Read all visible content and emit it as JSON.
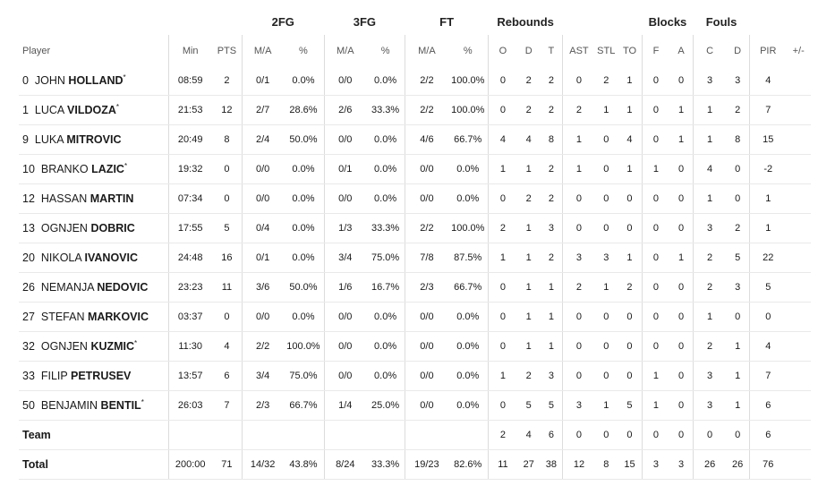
{
  "groups": {
    "fg2": "2FG",
    "fg3": "3FG",
    "ft": "FT",
    "rebounds": "Rebounds",
    "blocks": "Blocks",
    "fouls": "Fouls"
  },
  "headers": [
    "Player",
    "Min",
    "PTS",
    "M/A",
    "%",
    "M/A",
    "%",
    "M/A",
    "%",
    "O",
    "D",
    "T",
    "AST",
    "STL",
    "TO",
    "F",
    "A",
    "C",
    "D",
    "PIR",
    "+/-"
  ],
  "players": [
    {
      "number": "0",
      "first": "JOHN",
      "last": "HOLLAND",
      "starter": true,
      "stats": [
        "08:59",
        "2",
        "0/1",
        "0.0%",
        "0/0",
        "0.0%",
        "2/2",
        "100.0%",
        "0",
        "2",
        "2",
        "0",
        "2",
        "1",
        "0",
        "0",
        "3",
        "3",
        "4",
        ""
      ]
    },
    {
      "number": "1",
      "first": "LUCA",
      "last": "VILDOZA",
      "starter": true,
      "stats": [
        "21:53",
        "12",
        "2/7",
        "28.6%",
        "2/6",
        "33.3%",
        "2/2",
        "100.0%",
        "0",
        "2",
        "2",
        "2",
        "1",
        "1",
        "0",
        "1",
        "1",
        "2",
        "7",
        ""
      ]
    },
    {
      "number": "9",
      "first": "LUKA",
      "last": "MITROVIC",
      "starter": false,
      "stats": [
        "20:49",
        "8",
        "2/4",
        "50.0%",
        "0/0",
        "0.0%",
        "4/6",
        "66.7%",
        "4",
        "4",
        "8",
        "1",
        "0",
        "4",
        "0",
        "1",
        "1",
        "8",
        "15",
        ""
      ]
    },
    {
      "number": "10",
      "first": "BRANKO",
      "last": "LAZIC",
      "starter": true,
      "stats": [
        "19:32",
        "0",
        "0/0",
        "0.0%",
        "0/1",
        "0.0%",
        "0/0",
        "0.0%",
        "1",
        "1",
        "2",
        "1",
        "0",
        "1",
        "1",
        "0",
        "4",
        "0",
        "-2",
        ""
      ]
    },
    {
      "number": "12",
      "first": "HASSAN",
      "last": "MARTIN",
      "starter": false,
      "stats": [
        "07:34",
        "0",
        "0/0",
        "0.0%",
        "0/0",
        "0.0%",
        "0/0",
        "0.0%",
        "0",
        "2",
        "2",
        "0",
        "0",
        "0",
        "0",
        "0",
        "1",
        "0",
        "1",
        ""
      ]
    },
    {
      "number": "13",
      "first": "OGNJEN",
      "last": "DOBRIC",
      "starter": false,
      "stats": [
        "17:55",
        "5",
        "0/4",
        "0.0%",
        "1/3",
        "33.3%",
        "2/2",
        "100.0%",
        "2",
        "1",
        "3",
        "0",
        "0",
        "0",
        "0",
        "0",
        "3",
        "2",
        "1",
        ""
      ]
    },
    {
      "number": "20",
      "first": "NIKOLA",
      "last": "IVANOVIC",
      "starter": false,
      "stats": [
        "24:48",
        "16",
        "0/1",
        "0.0%",
        "3/4",
        "75.0%",
        "7/8",
        "87.5%",
        "1",
        "1",
        "2",
        "3",
        "3",
        "1",
        "0",
        "1",
        "2",
        "5",
        "22",
        ""
      ]
    },
    {
      "number": "26",
      "first": "NEMANJA",
      "last": "NEDOVIC",
      "starter": false,
      "stats": [
        "23:23",
        "11",
        "3/6",
        "50.0%",
        "1/6",
        "16.7%",
        "2/3",
        "66.7%",
        "0",
        "1",
        "1",
        "2",
        "1",
        "2",
        "0",
        "0",
        "2",
        "3",
        "5",
        ""
      ]
    },
    {
      "number": "27",
      "first": "STEFAN",
      "last": "MARKOVIC",
      "starter": false,
      "stats": [
        "03:37",
        "0",
        "0/0",
        "0.0%",
        "0/0",
        "0.0%",
        "0/0",
        "0.0%",
        "0",
        "1",
        "1",
        "0",
        "0",
        "0",
        "0",
        "0",
        "1",
        "0",
        "0",
        ""
      ]
    },
    {
      "number": "32",
      "first": "OGNJEN",
      "last": "KUZMIC",
      "starter": true,
      "stats": [
        "11:30",
        "4",
        "2/2",
        "100.0%",
        "0/0",
        "0.0%",
        "0/0",
        "0.0%",
        "0",
        "1",
        "1",
        "0",
        "0",
        "0",
        "0",
        "0",
        "2",
        "1",
        "4",
        ""
      ]
    },
    {
      "number": "33",
      "first": "FILIP",
      "last": "PETRUSEV",
      "starter": false,
      "stats": [
        "13:57",
        "6",
        "3/4",
        "75.0%",
        "0/0",
        "0.0%",
        "0/0",
        "0.0%",
        "1",
        "2",
        "3",
        "0",
        "0",
        "0",
        "1",
        "0",
        "3",
        "1",
        "7",
        ""
      ]
    },
    {
      "number": "50",
      "first": "BENJAMIN",
      "last": "BENTIL",
      "starter": true,
      "stats": [
        "26:03",
        "7",
        "2/3",
        "66.7%",
        "1/4",
        "25.0%",
        "0/0",
        "0.0%",
        "0",
        "5",
        "5",
        "3",
        "1",
        "5",
        "1",
        "0",
        "3",
        "1",
        "6",
        ""
      ]
    }
  ],
  "team": {
    "label": "Team",
    "stats": [
      "",
      "",
      "",
      "",
      "",
      "",
      "",
      "",
      "2",
      "4",
      "6",
      "0",
      "0",
      "0",
      "0",
      "0",
      "0",
      "0",
      "6",
      ""
    ]
  },
  "total": {
    "label": "Total",
    "stats": [
      "200:00",
      "71",
      "14/32",
      "43.8%",
      "8/24",
      "33.3%",
      "19/23",
      "82.6%",
      "11",
      "27",
      "38",
      "12",
      "8",
      "15",
      "3",
      "3",
      "26",
      "26",
      "76",
      ""
    ]
  }
}
